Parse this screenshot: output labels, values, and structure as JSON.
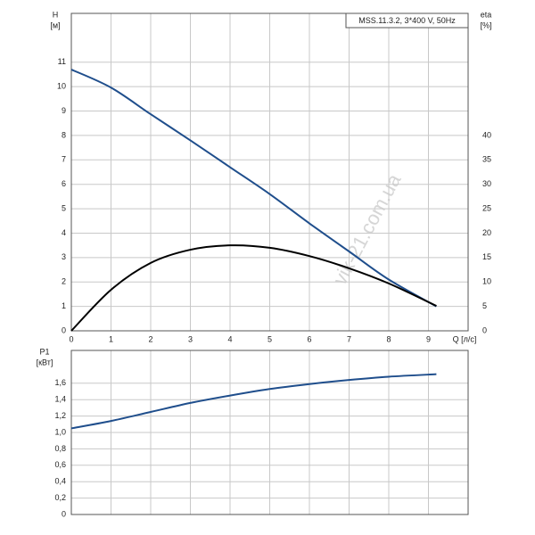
{
  "chart_data": [
    {
      "type": "line",
      "title": "MSS.11.3.2, 3*400 V, 50Hz",
      "ylabel": "H",
      "yunit": "[м]",
      "y2label": "eta",
      "y2unit": "[%]",
      "xlabel": "Q [л/с]",
      "x": [
        0,
        1,
        2,
        3,
        4,
        5,
        6,
        7,
        8,
        9.2
      ],
      "series": [
        {
          "color": "#1f4e8c",
          "axis": "y",
          "values": [
            10.7,
            9.96,
            8.87,
            7.8,
            6.7,
            5.6,
            4.4,
            3.25,
            2.1,
            1.0
          ]
        },
        {
          "color": "#000000",
          "axis": "y2",
          "values": [
            0,
            8.4,
            13.9,
            16.6,
            17.5,
            17.0,
            15.3,
            12.8,
            9.7,
            5.1
          ]
        }
      ],
      "xlim": [
        0,
        10
      ],
      "xticks": [
        0,
        1,
        2,
        3,
        4,
        5,
        6,
        7,
        8,
        9
      ],
      "ylim": [
        0,
        13
      ],
      "yticks": [
        0,
        1,
        2,
        3,
        4,
        5,
        6,
        7,
        8,
        9,
        10,
        11
      ],
      "y2lim": [
        0,
        65
      ],
      "y2ticks": [
        0,
        5,
        10,
        15,
        20,
        25,
        30,
        35,
        40
      ],
      "grid": true
    },
    {
      "type": "line",
      "ylabel": "P1",
      "yunit": "[кВт]",
      "x": [
        0,
        1,
        2,
        3,
        4,
        5,
        6,
        7,
        8,
        9.2
      ],
      "series": [
        {
          "color": "#1f4e8c",
          "axis": "y",
          "values": [
            1.05,
            1.14,
            1.25,
            1.36,
            1.45,
            1.53,
            1.59,
            1.64,
            1.68,
            1.71
          ]
        }
      ],
      "xlim": [
        0,
        10
      ],
      "xticks": [
        1,
        2,
        3,
        4,
        5,
        6,
        7,
        8,
        9
      ],
      "ylim": [
        0,
        2
      ],
      "yticks": [
        0,
        {
          "value": 0.2,
          "label": "0,2"
        },
        {
          "value": 0.4,
          "label": "0,4"
        },
        {
          "value": 0.6,
          "label": "0,6"
        },
        {
          "value": 0.8,
          "label": "0,8"
        },
        {
          "value": 1.0,
          "label": "1,0"
        },
        {
          "value": 1.2,
          "label": "1,2"
        },
        {
          "value": 1.4,
          "label": "1,4"
        },
        {
          "value": 1.6,
          "label": "1,6"
        }
      ],
      "grid": true
    }
  ],
  "watermark": "vik-21.com.ua"
}
